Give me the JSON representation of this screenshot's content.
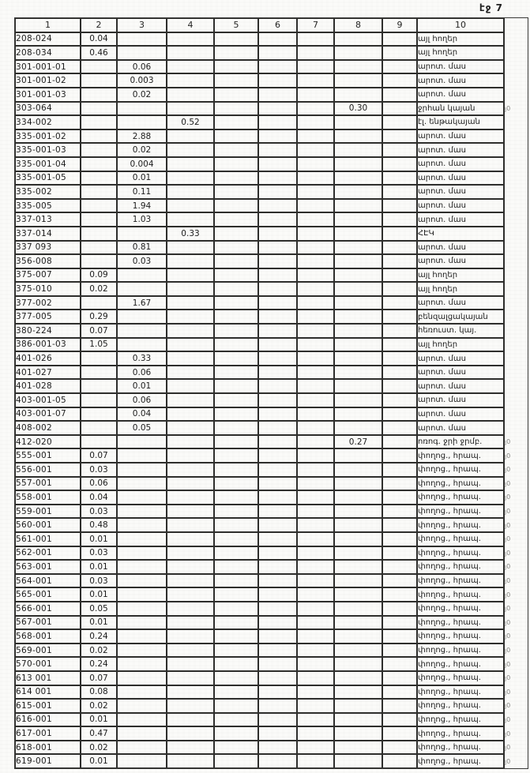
{
  "page": {
    "label": "էջ 7"
  },
  "table": {
    "headers": [
      "1",
      "2",
      "3",
      "4",
      "5",
      "6",
      "7",
      "8",
      "9",
      "10"
    ],
    "rows": [
      {
        "code": "208-024",
        "values": {
          "2": "0.04"
        },
        "use": "այլ հողեր",
        "margin": ""
      },
      {
        "code": "208-034",
        "values": {
          "2": "0.46"
        },
        "use": "այլ հողեր",
        "margin": ""
      },
      {
        "code": "301-001-01",
        "values": {
          "3": "0.06"
        },
        "use": "արոտ. մաս",
        "margin": ""
      },
      {
        "code": "301-001-02",
        "values": {
          "3": "0.003"
        },
        "use": "արոտ. մաս",
        "margin": ""
      },
      {
        "code": "301-001-03",
        "values": {
          "3": "0.02"
        },
        "use": "արոտ. մաս",
        "margin": ""
      },
      {
        "code": "303-064",
        "values": {
          "8": "0.30"
        },
        "use": "ջրհան կայան",
        "margin": "յ0"
      },
      {
        "code": "334-002",
        "values": {
          "4": "0.52"
        },
        "use": "էլ. ենթակայան",
        "margin": ""
      },
      {
        "code": "335-001-02",
        "values": {
          "3": "2.88"
        },
        "use": "արոտ. մաս",
        "margin": ""
      },
      {
        "code": "335-001-03",
        "values": {
          "3": "0.02"
        },
        "use": "արոտ. մաս",
        "margin": ""
      },
      {
        "code": "335-001-04",
        "values": {
          "3": "0.004"
        },
        "use": "արոտ. մաս",
        "margin": ""
      },
      {
        "code": "335-001-05",
        "values": {
          "3": "0.01"
        },
        "use": "արոտ. մաս",
        "margin": ""
      },
      {
        "code": "335-002",
        "values": {
          "3": "0.11"
        },
        "use": "արոտ. մաս",
        "margin": ""
      },
      {
        "code": "335-005",
        "values": {
          "3": "1.94"
        },
        "use": "արոտ. մաս",
        "margin": ""
      },
      {
        "code": "337-013",
        "values": {
          "3": "1.03"
        },
        "use": "արոտ. մաս",
        "margin": ""
      },
      {
        "code": "337-014",
        "values": {
          "4": "0.33"
        },
        "use": "ՀԷԿ",
        "margin": ""
      },
      {
        "code": "337 093",
        "values": {
          "3": "0.81"
        },
        "use": "արոտ. մաս",
        "margin": ""
      },
      {
        "code": "356-008",
        "values": {
          "3": "0.03"
        },
        "use": "արոտ. մաս",
        "margin": ""
      },
      {
        "code": "375-007",
        "values": {
          "2": "0.09"
        },
        "use": "այլ հողեր",
        "margin": ""
      },
      {
        "code": "375-010",
        "values": {
          "2": "0.02"
        },
        "use": "այլ հողեր",
        "margin": ""
      },
      {
        "code": "377-002",
        "values": {
          "3": "1.67"
        },
        "use": "արոտ. մաս",
        "margin": ""
      },
      {
        "code": "377-005",
        "values": {
          "2": "0.29"
        },
        "use": "բենզալցակայան",
        "margin": ""
      },
      {
        "code": "380-224",
        "values": {
          "2": "0.07"
        },
        "use": "հեռուստ. կայ.",
        "margin": ""
      },
      {
        "code": "386-001-03",
        "values": {
          "2": "1.05"
        },
        "use": "այլ հողեր",
        "margin": ""
      },
      {
        "code": "401-026",
        "values": {
          "3": "0.33"
        },
        "use": "արոտ. մաս",
        "margin": ""
      },
      {
        "code": "401-027",
        "values": {
          "3": "0.06"
        },
        "use": "արոտ. մաս",
        "margin": ""
      },
      {
        "code": "401-028",
        "values": {
          "3": "0.01"
        },
        "use": "արոտ. մաս",
        "margin": ""
      },
      {
        "code": "403-001-05",
        "values": {
          "3": "0.06"
        },
        "use": "արոտ. մաս",
        "margin": ""
      },
      {
        "code": "403-001-07",
        "values": {
          "3": "0.04"
        },
        "use": "արոտ. մաս",
        "margin": ""
      },
      {
        "code": "408-002",
        "values": {
          "3": "0.05"
        },
        "use": "արոտ. մաս",
        "margin": ""
      },
      {
        "code": "412-020",
        "values": {
          "8": "0.27"
        },
        "use": "ոռոգ. ջրի ջրմբ.",
        "margin": "յ0"
      },
      {
        "code": "555-001",
        "values": {
          "2": "0.07"
        },
        "use": "փողոց., հրապ.",
        "margin": "յ0"
      },
      {
        "code": "556-001",
        "values": {
          "2": "0.03"
        },
        "use": "փողոց., հրապ.",
        "margin": "յ0"
      },
      {
        "code": "557-001",
        "values": {
          "2": "0.06"
        },
        "use": "փողոց., հրապ.",
        "margin": "յ0"
      },
      {
        "code": "558-001",
        "values": {
          "2": "0.04"
        },
        "use": "փողոց., հրապ.",
        "margin": "յ0"
      },
      {
        "code": "559-001",
        "values": {
          "2": "0.03"
        },
        "use": "փողոց., հրապ.",
        "margin": "յ0"
      },
      {
        "code": "560-001",
        "values": {
          "2": "0.48"
        },
        "use": "փողոց., հրապ.",
        "margin": "յ0"
      },
      {
        "code": "561-001",
        "values": {
          "2": "0.01"
        },
        "use": "փողոց., հրապ.",
        "margin": "յ0"
      },
      {
        "code": "562-001",
        "values": {
          "2": "0.03"
        },
        "use": "փողոց., հրապ.",
        "margin": "յ0"
      },
      {
        "code": "563-001",
        "values": {
          "2": "0.01"
        },
        "use": "փողոց., հրապ.",
        "margin": "յ0"
      },
      {
        "code": "564-001",
        "values": {
          "2": "0.03"
        },
        "use": "փողոց., հրապ.",
        "margin": "յ0"
      },
      {
        "code": "565-001",
        "values": {
          "2": "0.01"
        },
        "use": "փողոց., հրապ.",
        "margin": "յ0"
      },
      {
        "code": "566-001",
        "values": {
          "2": "0.05"
        },
        "use": "փողոց., հրապ.",
        "margin": "յ0"
      },
      {
        "code": "567-001",
        "values": {
          "2": "0.01"
        },
        "use": "փողոց., հրապ.",
        "margin": "յ0"
      },
      {
        "code": "568-001",
        "values": {
          "2": "0.24"
        },
        "use": "փողոց., հրապ.",
        "margin": "յ0"
      },
      {
        "code": "569-001",
        "values": {
          "2": "0.02"
        },
        "use": "փողոց., հրապ.",
        "margin": "յ0"
      },
      {
        "code": "570-001",
        "values": {
          "2": "0.24"
        },
        "use": "փողոց., հրապ.",
        "margin": "յ0"
      },
      {
        "code": "613 001",
        "values": {
          "2": "0.07"
        },
        "use": "փողոց., հրապ.",
        "margin": "յ0"
      },
      {
        "code": "614 001",
        "values": {
          "2": "0.08"
        },
        "use": "փողոց., հրապ.",
        "margin": "յ0"
      },
      {
        "code": "615-001",
        "values": {
          "2": "0.02"
        },
        "use": "փողոց., հրապ.",
        "margin": "յ0"
      },
      {
        "code": "616-001",
        "values": {
          "2": "0.01"
        },
        "use": "փողոց., հրապ.",
        "margin": "յ0"
      },
      {
        "code": "617-001",
        "values": {
          "2": "0.47"
        },
        "use": "փողոց., հրապ.",
        "margin": "յ0"
      },
      {
        "code": "618-001",
        "values": {
          "2": "0.02"
        },
        "use": "փողոց., հրապ.",
        "margin": "յ0"
      },
      {
        "code": "619-001",
        "values": {
          "2": "0.01"
        },
        "use": "փողոց., հրապ.",
        "margin": "յ0"
      }
    ]
  }
}
